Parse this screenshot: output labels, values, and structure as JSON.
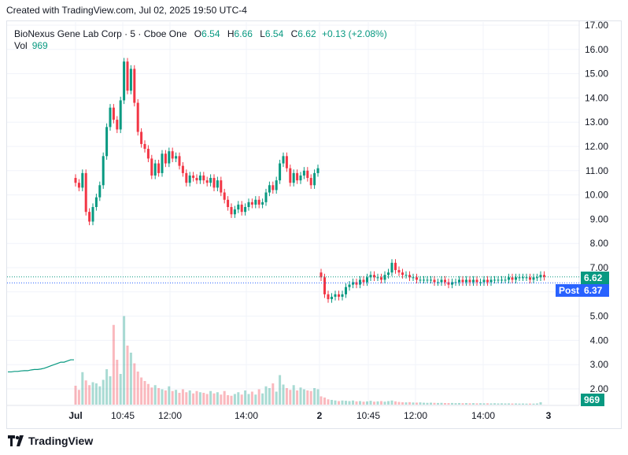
{
  "header": {
    "caption": "Created with TradingView.com, Jul 02, 2025 19:50 UTC-4"
  },
  "legend": {
    "symbol": "BioNexus Gene Lab Corp · 5 · Cboe One",
    "o_label": "O",
    "o": "6.54",
    "h_label": "H",
    "h": "6.66",
    "l_label": "L",
    "l": "6.54",
    "c_label": "C",
    "c": "6.62",
    "change": "+0.13 (+2.08%)",
    "vol_label": "Vol",
    "vol": "969"
  },
  "price_tags": {
    "last": "6.62",
    "post_label": "Post",
    "post": "6.37",
    "volume": "969"
  },
  "footer": {
    "brand": "TradingView"
  },
  "colors": {
    "up": "#089981",
    "down": "#f23645",
    "post_tag": "#2962ff",
    "grid": "#f0f3fa"
  },
  "chart_data": {
    "type": "candlestick",
    "y_ticks": [
      "17.00",
      "16.00",
      "15.00",
      "14.00",
      "13.00",
      "12.00",
      "11.00",
      "10.00",
      "9.00",
      "8.00",
      "7.00",
      "6.00",
      "5.00",
      "4.00",
      "3.00",
      "2.00"
    ],
    "ylim": [
      1.3,
      17.3
    ],
    "x_ticks": [
      "Jul",
      "10:45",
      "12:00",
      "14:00",
      "2",
      "10:45",
      "12:00",
      "14:00",
      "3"
    ],
    "grid": true,
    "sessions": [
      {
        "name": "Jul 01",
        "closes": [
          10.5,
          10.3,
          10.9,
          9.3,
          8.9,
          9.5,
          9.9,
          10.4,
          11.6,
          12.8,
          13.6,
          13.1,
          12.7,
          13.9,
          15.5,
          14.3,
          15.2,
          13.8,
          12.6,
          12.1,
          11.9,
          11.5,
          10.8,
          11.3,
          10.9,
          11.7,
          11.3,
          11.8,
          11.5,
          11.6,
          11.2,
          10.9,
          10.5,
          10.8,
          10.7,
          10.6,
          10.8,
          10.6,
          10.5,
          10.7,
          10.3,
          10.6,
          10.1,
          9.8,
          9.5,
          9.2,
          9.4,
          9.6,
          9.3,
          9.5,
          9.7,
          9.6,
          9.8,
          9.6,
          9.7,
          10.1,
          10.4,
          10.2,
          10.6,
          11.3,
          11.6,
          11.1,
          10.5,
          10.9,
          10.6,
          10.8,
          11.0,
          10.7,
          10.4,
          10.9,
          11.1
        ],
        "volumes": [
          320000,
          250000,
          550000,
          410000,
          330000,
          380000,
          360000,
          310000,
          420000,
          600000,
          480000,
          1350000,
          760000,
          520000,
          1500000,
          1000000,
          880000,
          700000,
          560000,
          460000,
          400000,
          350000,
          290000,
          330000,
          280000,
          260000,
          240000,
          310000,
          230000,
          250000,
          200000,
          260000,
          210000,
          240000,
          190000,
          230000,
          210000,
          200000,
          180000,
          230000,
          190000,
          210000,
          170000,
          230000,
          160000,
          150000,
          180000,
          210000,
          170000,
          240000,
          180000,
          220000,
          170000,
          260000,
          190000,
          310000,
          280000,
          360000,
          220000,
          500000,
          340000,
          280000,
          250000,
          330000,
          240000,
          290000,
          260000,
          240000,
          230000,
          280000,
          260000
        ]
      },
      {
        "name": "Jul 02",
        "closes": [
          6.6,
          5.9,
          5.7,
          5.8,
          5.9,
          5.8,
          5.9,
          6.2,
          6.3,
          6.4,
          6.3,
          6.5,
          6.4,
          6.6,
          6.7,
          6.6,
          6.6,
          6.5,
          6.7,
          6.8,
          7.2,
          6.9,
          6.8,
          6.7,
          6.7,
          6.6,
          6.6,
          6.5,
          6.5,
          6.5,
          6.5,
          6.5,
          6.4,
          6.4,
          6.5,
          6.4,
          6.3,
          6.4,
          6.4,
          6.5,
          6.4,
          6.5,
          6.4,
          6.5,
          6.4,
          6.4,
          6.5,
          6.4,
          6.5,
          6.5,
          6.5,
          6.5,
          6.5,
          6.6,
          6.5,
          6.6,
          6.6,
          6.6,
          6.6,
          6.5,
          6.6,
          6.6,
          6.7,
          6.62
        ],
        "volumes": [
          140000,
          120000,
          90000,
          80000,
          70000,
          60000,
          70000,
          65000,
          60000,
          70000,
          55000,
          60000,
          50000,
          55000,
          65000,
          50000,
          55000,
          60000,
          50000,
          60000,
          70000,
          55000,
          45000,
          40000,
          38000,
          42000,
          36000,
          34000,
          38000,
          32000,
          30000,
          33000,
          30000,
          28000,
          30000,
          27000,
          26000,
          28000,
          25000,
          27000,
          24000,
          26000,
          23000,
          25000,
          22000,
          24000,
          22000,
          23000,
          21000,
          23000,
          20000,
          22000,
          20000,
          21000,
          19000,
          20000,
          18000,
          19000,
          17000,
          18000,
          17000,
          20000,
          40000,
          969
        ]
      }
    ],
    "extended_hours_pre": [
      2.7,
      2.7,
      2.72,
      2.72,
      2.74,
      2.75,
      2.75,
      2.78,
      2.8,
      2.8,
      2.82,
      2.85,
      2.9,
      2.95,
      3.0,
      3.05,
      3.1,
      3.1,
      3.15,
      3.2,
      3.2
    ]
  }
}
